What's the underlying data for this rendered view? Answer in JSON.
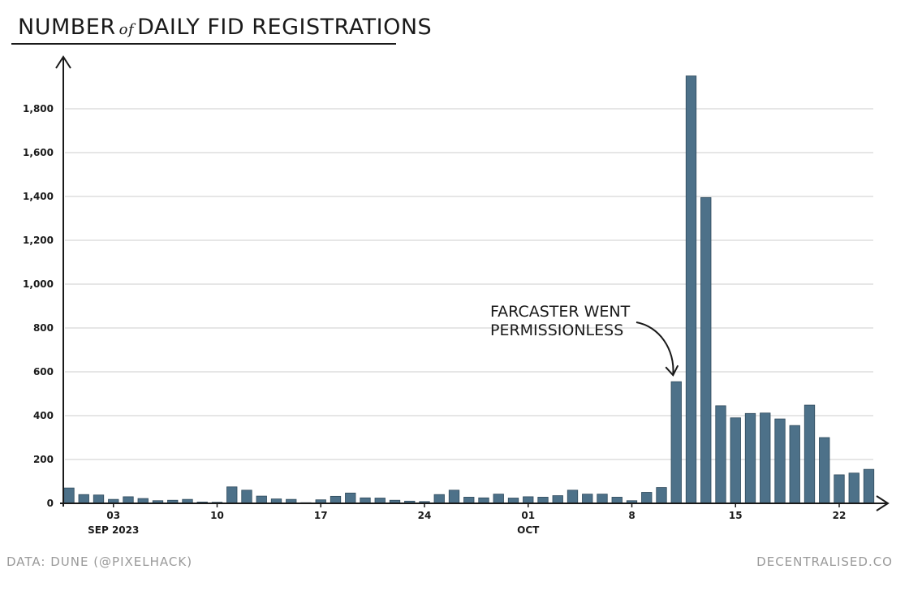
{
  "title": {
    "part1": "NUMBER",
    "part2": "of",
    "part3": "DAILY FID REGISTRATIONS"
  },
  "footer": {
    "source": "DATA: DUNE (@PIXELHACK)",
    "site": "DECENTRALISED.CO"
  },
  "chart_data": {
    "type": "bar",
    "title": "NUMBER of DAILY FID REGISTRATIONS",
    "xlabel": "",
    "ylabel": "",
    "ylim": [
      0,
      1900
    ],
    "yticks": [
      0,
      200,
      400,
      600,
      800,
      1000,
      1200,
      1400,
      1600,
      1800
    ],
    "ytick_labels": [
      "0",
      "200",
      "400",
      "600",
      "800",
      "1,000",
      "1,200",
      "1,400",
      "1,600",
      "1,800"
    ],
    "grid": true,
    "bar_color": "#4d7189",
    "x_start": "2023-08-31",
    "values": [
      70,
      40,
      38,
      18,
      30,
      22,
      12,
      14,
      18,
      6,
      5,
      75,
      60,
      33,
      20,
      18,
      3,
      16,
      32,
      47,
      25,
      24,
      14,
      10,
      8,
      40,
      60,
      28,
      25,
      42,
      24,
      30,
      28,
      35,
      60,
      42,
      42,
      28,
      12,
      50,
      72,
      555,
      1950,
      1395,
      445,
      390,
      410,
      412,
      385,
      355,
      448,
      300,
      130,
      138,
      155
    ],
    "x_ticks": [
      {
        "date": "2023-09-03",
        "label": "03",
        "sublabel": "SEP 2023"
      },
      {
        "date": "2023-09-10",
        "label": "10",
        "sublabel": ""
      },
      {
        "date": "2023-09-17",
        "label": "17",
        "sublabel": ""
      },
      {
        "date": "2023-09-24",
        "label": "24",
        "sublabel": ""
      },
      {
        "date": "2023-10-01",
        "label": "01",
        "sublabel": "OCT"
      },
      {
        "date": "2023-10-08",
        "label": "8",
        "sublabel": ""
      },
      {
        "date": "2023-10-15",
        "label": "15",
        "sublabel": ""
      },
      {
        "date": "2023-10-22",
        "label": "22",
        "sublabel": ""
      }
    ],
    "annotation": {
      "lines": [
        "FARCASTER WENT",
        "PERMISSIONLESS"
      ],
      "points_to_date": "2023-10-11"
    }
  }
}
